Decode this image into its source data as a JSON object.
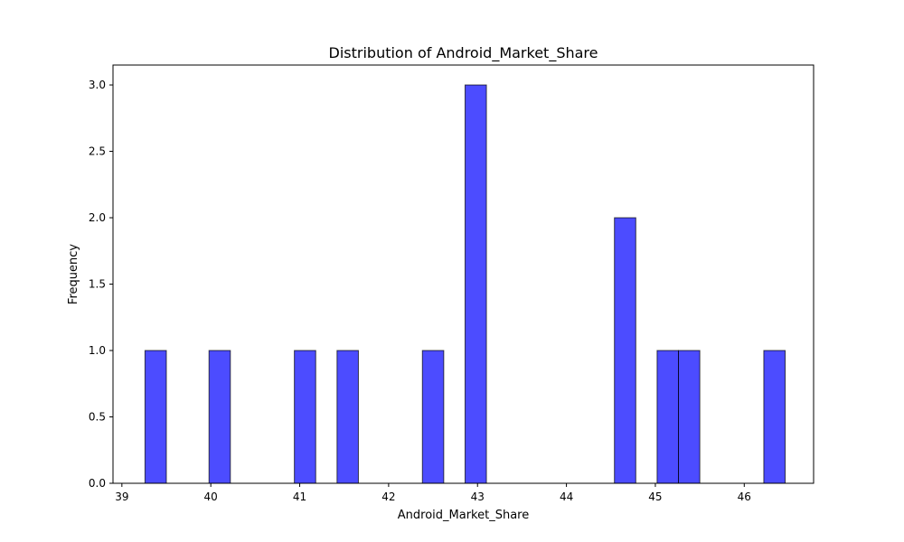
{
  "chart_data": {
    "type": "bar",
    "title": "Distribution of Android_Market_Share",
    "xlabel": "Android_Market_Share",
    "ylabel": "Frequency",
    "xlim": [
      38.9,
      46.78
    ],
    "ylim": [
      0,
      3.15
    ],
    "x_ticks": [
      39,
      40,
      41,
      42,
      43,
      44,
      45,
      46
    ],
    "y_ticks": [
      0.0,
      0.5,
      1.0,
      1.5,
      2.0,
      2.5,
      3.0
    ],
    "bins": [
      {
        "x0": 39.26,
        "x1": 39.5,
        "count": 1
      },
      {
        "x0": 39.98,
        "x1": 40.22,
        "count": 1
      },
      {
        "x0": 40.94,
        "x1": 41.18,
        "count": 1
      },
      {
        "x0": 41.42,
        "x1": 41.66,
        "count": 1
      },
      {
        "x0": 42.38,
        "x1": 42.62,
        "count": 1
      },
      {
        "x0": 42.86,
        "x1": 43.1,
        "count": 3
      },
      {
        "x0": 44.54,
        "x1": 44.78,
        "count": 2
      },
      {
        "x0": 45.02,
        "x1": 45.26,
        "count": 1
      },
      {
        "x0": 45.26,
        "x1": 45.5,
        "count": 1
      },
      {
        "x0": 46.22,
        "x1": 46.46,
        "count": 1
      }
    ],
    "bar_color": "#0000ff",
    "bar_opacity": 0.7,
    "edge_color": "#000000",
    "grid": false
  }
}
